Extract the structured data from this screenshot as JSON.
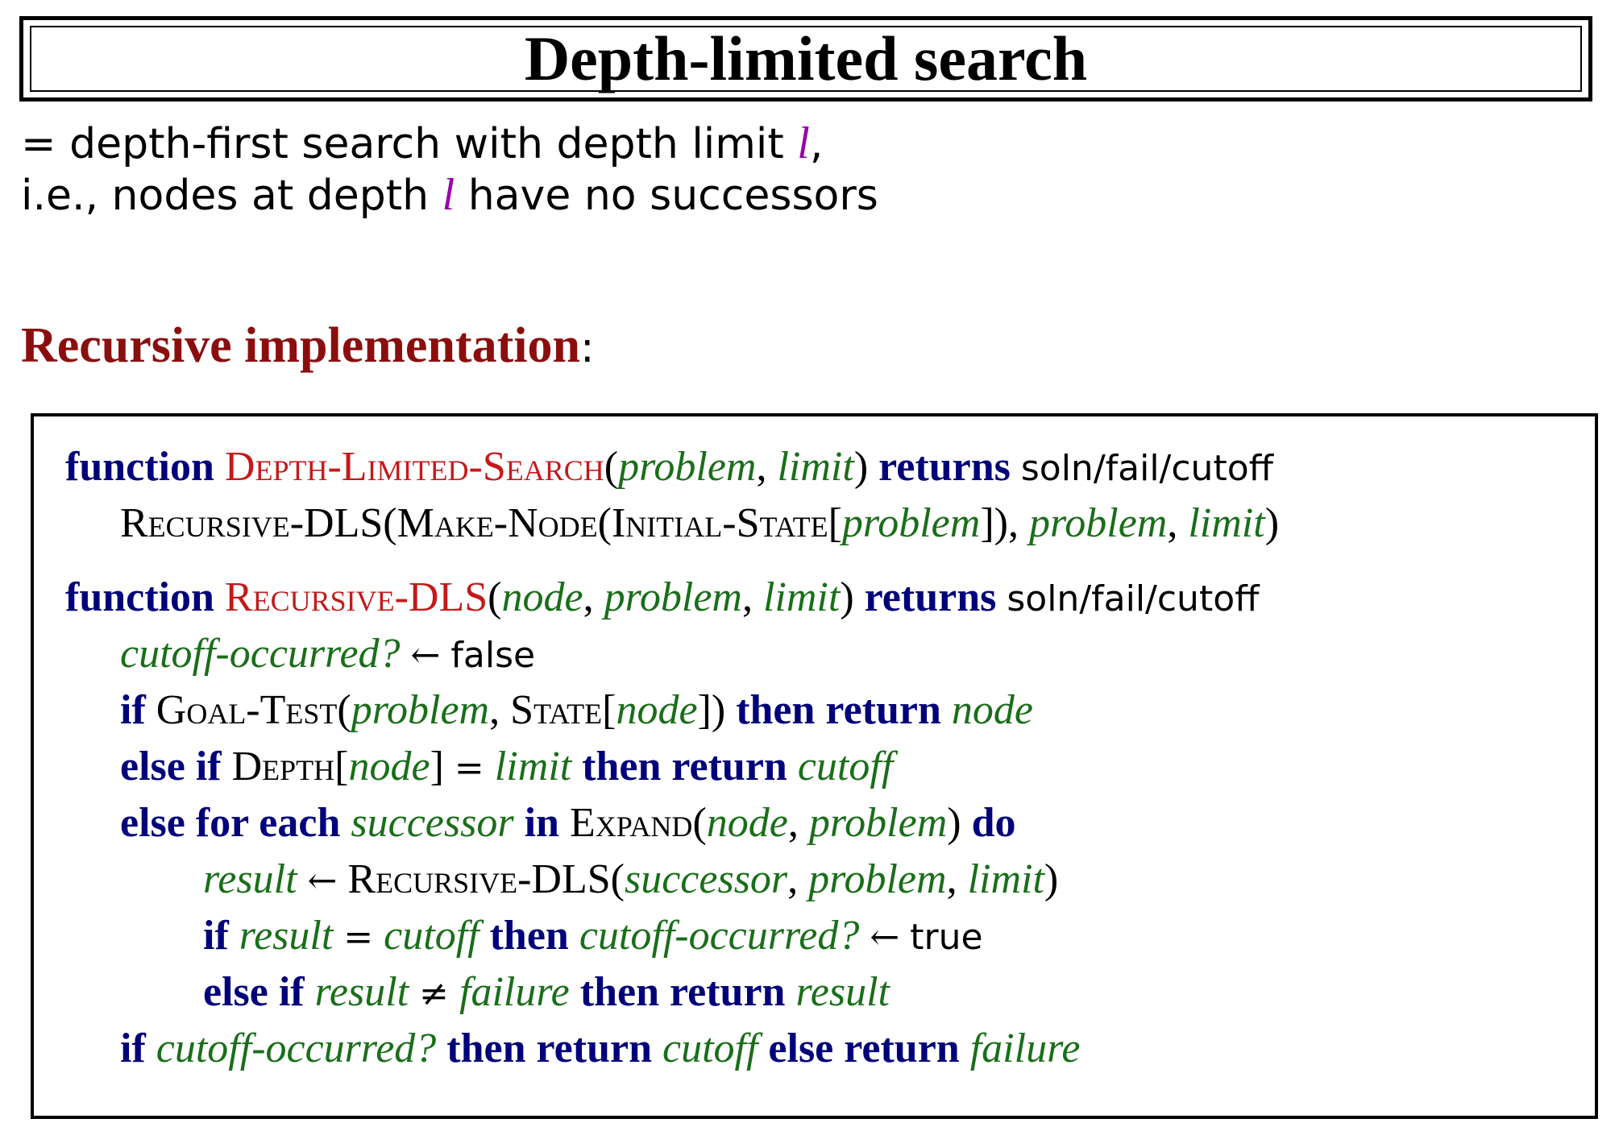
{
  "title": "Depth-limited search",
  "intro": {
    "line1_before": "= depth-first search with depth limit ",
    "line1_var": "l",
    "line1_after": ",",
    "line2_before": "i.e., nodes at depth ",
    "line2_var": "l",
    "line2_after": " have no successors"
  },
  "heading": {
    "text": "Recursive implementation",
    "colon": ":"
  },
  "code": {
    "kw_function": "function",
    "kw_returns": "returns",
    "kw_if": "if",
    "kw_then_return": "then return",
    "kw_else_if": "else if",
    "kw_else_for_each": "else for each",
    "kw_in": "in",
    "kw_do": "do",
    "kw_then": "then",
    "kw_else_return": "else return",
    "fn_dls": "Depth-Limited-Search",
    "fn_rdls": "Recursive-DLS",
    "pr_make_node": "Make-Node",
    "pr_initial_state": "Initial-State",
    "pr_goal_test": "Goal-Test",
    "pr_state": "State",
    "pr_depth": "Depth",
    "pr_expand": "Expand",
    "v_problem": "problem",
    "v_limit": "limit",
    "v_node": "node",
    "v_cutoff_occurred": "cutoff-occurred?",
    "v_cutoff": "cutoff",
    "v_successor": "successor",
    "v_result": "result",
    "v_failure": "failure",
    "ret_type": "soln/fail/cutoff",
    "lit_false": "false",
    "lit_true": "true",
    "arrow": "←",
    "eq": "=",
    "neq": "≠"
  }
}
